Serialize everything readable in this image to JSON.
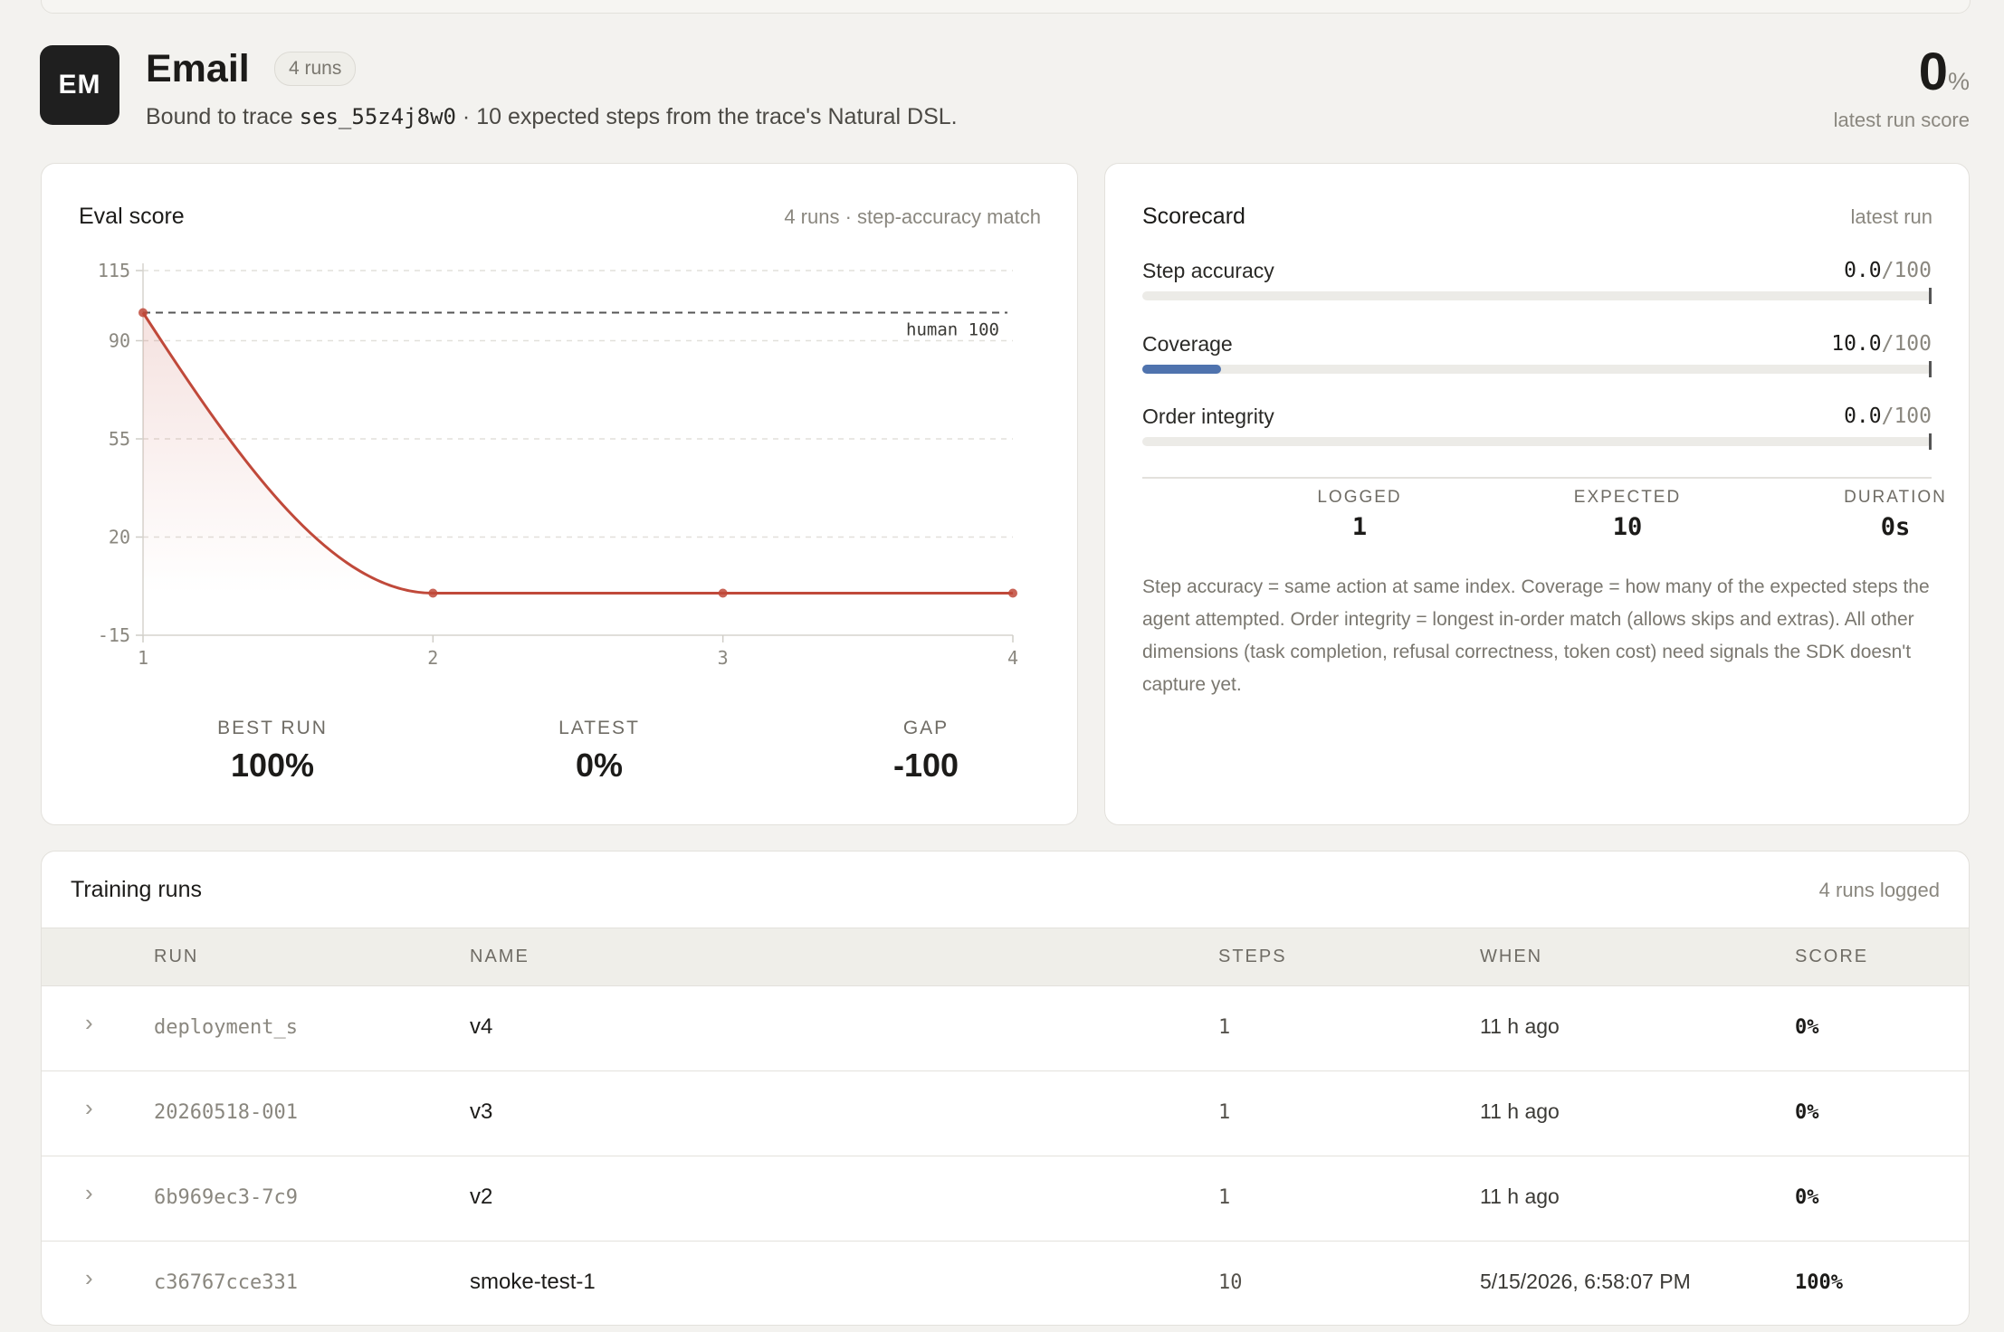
{
  "header": {
    "avatar": "EM",
    "title": "Email",
    "runs_badge": "4 runs",
    "subtitle_prefix": "Bound to trace",
    "trace_id": "ses_55z4j8w0",
    "subtitle_suffix": "· 10 expected steps from the trace's Natural DSL.",
    "latest_score": "0",
    "latest_score_unit": "%",
    "latest_score_label": "latest run score"
  },
  "eval": {
    "title": "Eval score",
    "meta": "4 runs · step-accuracy match",
    "stats": [
      {
        "label": "BEST RUN",
        "value": "100%"
      },
      {
        "label": "LATEST",
        "value": "0%"
      },
      {
        "label": "GAP",
        "value": "-100"
      }
    ]
  },
  "chart_data": {
    "type": "line",
    "x": [
      1,
      2,
      3,
      4
    ],
    "series": [
      {
        "values": [
          100,
          0,
          0,
          0
        ]
      }
    ],
    "xlim": [
      1,
      4
    ],
    "ylim": [
      -15,
      115
    ],
    "y_ticks": [
      115,
      90,
      55,
      20,
      -15
    ],
    "x_ticks": [
      1,
      2,
      3,
      4
    ],
    "reference_line": {
      "value": 100,
      "label": "human 100"
    },
    "grid": true,
    "line_color": "#c0493a"
  },
  "scorecard": {
    "title": "Scorecard",
    "meta": "latest run",
    "metrics": [
      {
        "name": "Step accuracy",
        "value": "0.0",
        "of": "/100",
        "fraction": 0.0
      },
      {
        "name": "Coverage",
        "value": "10.0",
        "of": "/100",
        "fraction": 0.1
      },
      {
        "name": "Order integrity",
        "value": "0.0",
        "of": "/100",
        "fraction": 0.0
      }
    ],
    "stats": [
      {
        "label": "LOGGED",
        "value": "1"
      },
      {
        "label": "EXPECTED",
        "value": "10"
      },
      {
        "label": "DURATION",
        "value": "0s"
      }
    ],
    "note": "Step accuracy = same action at same index. Coverage = how many of the expected steps the agent attempted. Order integrity = longest in-order match (allows skips and extras). All other dimensions (task completion, refusal correctness, token cost) need signals the SDK doesn't capture yet."
  },
  "runs": {
    "title": "Training runs",
    "meta": "4 runs logged",
    "columns": [
      "RUN",
      "NAME",
      "STEPS",
      "WHEN",
      "SCORE"
    ],
    "rows": [
      {
        "run": "deployment_s",
        "name": "v4",
        "steps": "1",
        "when": "11 h ago",
        "score": "0%"
      },
      {
        "run": "20260518-001",
        "name": "v3",
        "steps": "1",
        "when": "11 h ago",
        "score": "0%"
      },
      {
        "run": "6b969ec3-7c9",
        "name": "v2",
        "steps": "1",
        "when": "11 h ago",
        "score": "0%"
      },
      {
        "run": "c36767cce331",
        "name": "smoke-test-1",
        "steps": "10",
        "when": "5/15/2026, 6:58:07 PM",
        "score": "100%"
      }
    ]
  }
}
